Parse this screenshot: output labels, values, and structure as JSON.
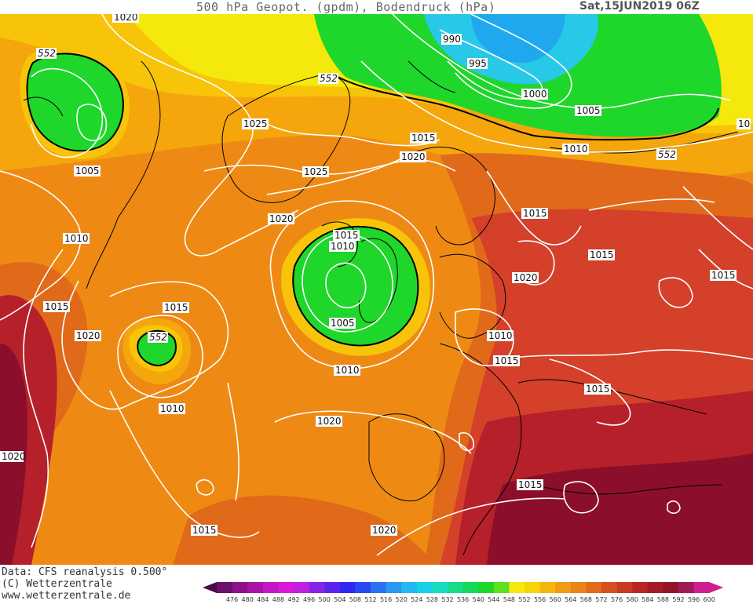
{
  "header": {
    "title": "500 hPa Geopot. (gpdm), Bodendruck (hPa)",
    "date": "Sat,15JUN2019 06Z"
  },
  "footer": {
    "data_source": "Data: CFS reanalysis 0.500°",
    "copyright": "(C) Wetterzentrale",
    "website": "www.wetterzentrale.de"
  },
  "colors": {
    "deep_red": "#8b0f2a",
    "red": "#b5202b",
    "red_orange": "#d4402a",
    "orange_dark": "#e06a1a",
    "orange": "#ee8a14",
    "orange_light": "#f4a60c",
    "yellow_orange": "#f7c40a",
    "yellow": "#f5e80c",
    "green": "#1fd62a",
    "green_light": "#33e85a",
    "cyan": "#1ad8d8",
    "light_blue": "#28b8f0",
    "isobar": "#ffffff",
    "coast": "#000000"
  },
  "scale": {
    "values": [
      "476",
      "480",
      "484",
      "488",
      "492",
      "496",
      "500",
      "504",
      "508",
      "512",
      "516",
      "520",
      "524",
      "528",
      "532",
      "536",
      "540",
      "544",
      "548",
      "552",
      "556",
      "560",
      "564",
      "568",
      "572",
      "576",
      "580",
      "584",
      "588",
      "592",
      "596",
      "600"
    ],
    "colors": [
      "#4a0a4a",
      "#6a0f6a",
      "#8a128a",
      "#a814a8",
      "#c418c4",
      "#d81ad8",
      "#c020e0",
      "#8a22e8",
      "#5a24ec",
      "#3028f0",
      "#2a48f0",
      "#2a70f0",
      "#2898f0",
      "#22b8f0",
      "#18d0e8",
      "#18dcc0",
      "#14dc8a",
      "#14d858",
      "#1fd62a",
      "#5ce020",
      "#f5e80c",
      "#f7d40a",
      "#f4b80c",
      "#f09c12",
      "#ea8418",
      "#e26a1c",
      "#d6501f",
      "#c83a22",
      "#b82624",
      "#a41a26",
      "#921428",
      "#a01a5a",
      "#d02090"
    ]
  },
  "isobars": [
    {
      "label": "1020"
    },
    {
      "label": "552"
    },
    {
      "label": "990"
    },
    {
      "label": "995"
    },
    {
      "label": "552"
    },
    {
      "label": "1000"
    },
    {
      "label": "1025"
    },
    {
      "label": "1005"
    },
    {
      "label": "10"
    },
    {
      "label": "1015"
    },
    {
      "label": "1005"
    },
    {
      "label": "1020"
    },
    {
      "label": "1010"
    },
    {
      "label": "552"
    },
    {
      "label": "1025"
    },
    {
      "label": "1010"
    },
    {
      "label": "1015"
    },
    {
      "label": "1020"
    },
    {
      "label": "1015"
    },
    {
      "label": "1015"
    },
    {
      "label": "1010"
    },
    {
      "label": "1015"
    },
    {
      "label": "1020"
    },
    {
      "label": "1015"
    },
    {
      "label": "1015"
    },
    {
      "label": "1005"
    },
    {
      "label": "1010"
    },
    {
      "label": "1020"
    },
    {
      "label": "552"
    },
    {
      "label": "1010"
    },
    {
      "label": "1015"
    },
    {
      "label": "1010"
    },
    {
      "label": "1015"
    },
    {
      "label": "1020"
    },
    {
      "label": "1020"
    },
    {
      "label": "1015"
    },
    {
      "label": "1015"
    },
    {
      "label": "1020"
    }
  ]
}
